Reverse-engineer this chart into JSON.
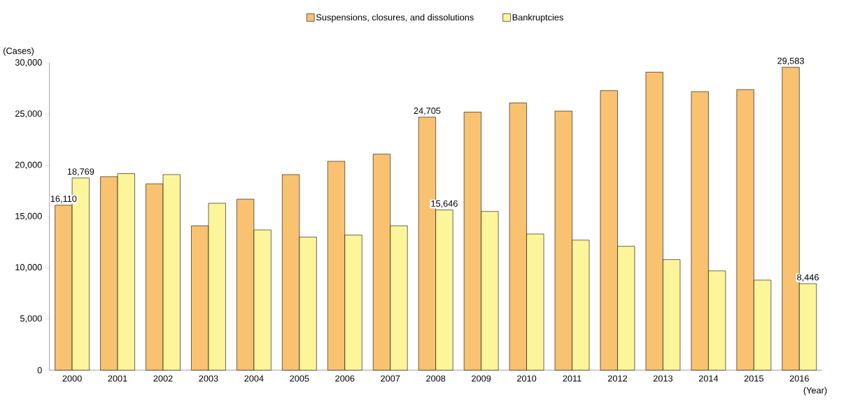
{
  "chart_data": {
    "type": "bar",
    "xlabel": "(Year)",
    "ylabel": "(Cases)",
    "categories": [
      "2000",
      "2001",
      "2002",
      "2003",
      "2004",
      "2005",
      "2006",
      "2007",
      "2008",
      "2009",
      "2010",
      "2011",
      "2012",
      "2013",
      "2014",
      "2015",
      "2016"
    ],
    "series": [
      {
        "name": "Suspensions, closures, and dissolutions",
        "color": "#f8c271",
        "values": [
          16110,
          18900,
          18200,
          14100,
          16700,
          19100,
          20400,
          21100,
          24705,
          25200,
          26100,
          25300,
          27300,
          29100,
          27200,
          27400,
          29583
        ],
        "value_labels": [
          "16,110",
          null,
          null,
          null,
          null,
          null,
          null,
          null,
          "24,705",
          null,
          null,
          null,
          null,
          null,
          null,
          null,
          "29,583"
        ]
      },
      {
        "name": "Bankruptcies",
        "color": "#fdf59a",
        "values": [
          18769,
          19200,
          19100,
          16300,
          13700,
          13000,
          13200,
          14100,
          15646,
          15500,
          13300,
          12700,
          12100,
          10800,
          9700,
          8800,
          8446
        ],
        "value_labels": [
          "18,769",
          null,
          null,
          null,
          null,
          null,
          null,
          null,
          "15,646",
          null,
          null,
          null,
          null,
          null,
          null,
          null,
          "8,446"
        ]
      }
    ],
    "ylim": [
      0,
      30000
    ],
    "yticks": [
      {
        "value": 0,
        "label": "0"
      },
      {
        "value": 5000,
        "label": "5,000"
      },
      {
        "value": 10000,
        "label": "10,000"
      },
      {
        "value": 15000,
        "label": "15,000"
      },
      {
        "value": 20000,
        "label": "20,000"
      },
      {
        "value": 25000,
        "label": "25,000"
      },
      {
        "value": 30000,
        "label": "30,000"
      }
    ],
    "legend": "top",
    "grid": false
  }
}
